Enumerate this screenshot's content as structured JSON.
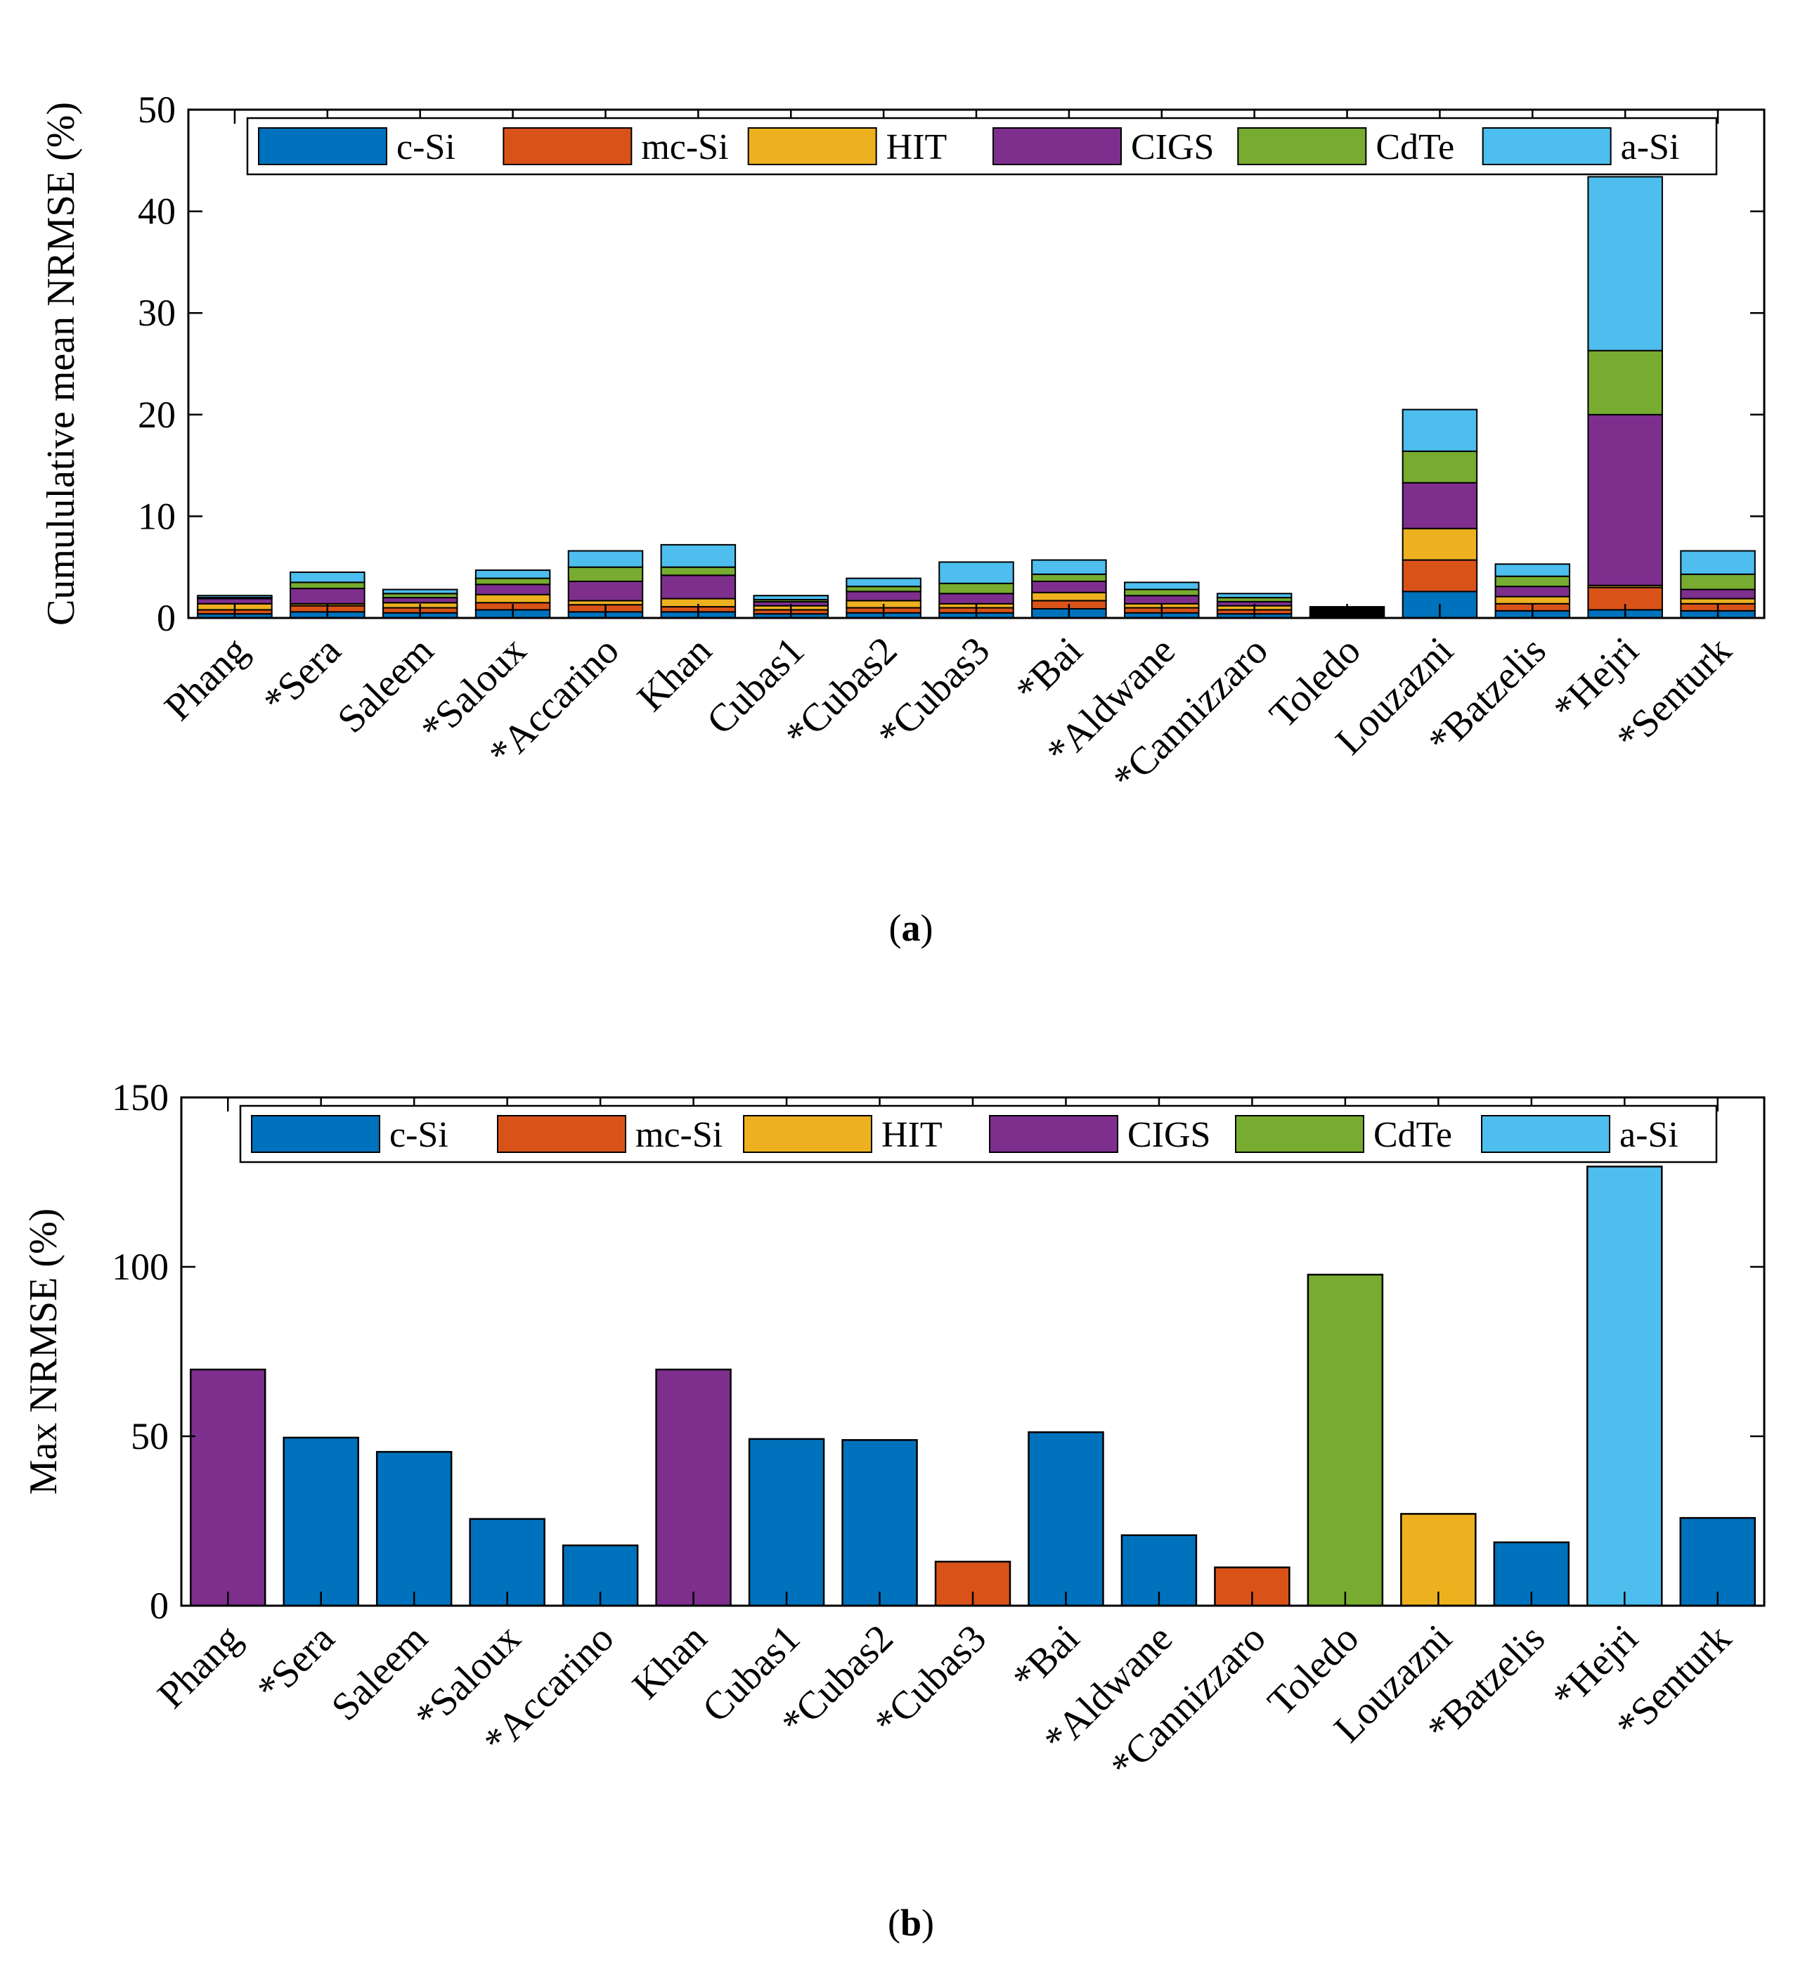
{
  "colors": {
    "c-Si": "#0072BD",
    "mc-Si": "#D95319",
    "HIT": "#EDB120",
    "CIGS": "#7E2F8E",
    "CdTe": "#77AC30",
    "a-Si": "#4DBEEE",
    "Toledo": "#000000"
  },
  "chart_data": [
    {
      "type": "bar",
      "stacked": true,
      "caption_letter": "a",
      "title": "",
      "xlabel": "",
      "ylabel": "Cumululative mean NRMSE (%)",
      "ylim": [
        0,
        50
      ],
      "yticks": [
        0,
        10,
        20,
        30,
        40,
        50
      ],
      "legend": [
        "c-Si",
        "mc-Si",
        "HIT",
        "CIGS",
        "CdTe",
        "a-Si"
      ],
      "legend_position": "top",
      "categories": [
        "Phang",
        "*Sera",
        "Saleem",
        "*Saloux",
        "*Accarino",
        "Khan",
        "Cubas1",
        "*Cubas2",
        "*Cubas3",
        "*Bai",
        "*Aldwane",
        "*Cannizzaro",
        "Toledo",
        "Louzazni",
        "*Batzelis",
        "*Hejri",
        "*Senturk"
      ],
      "series": [
        {
          "name": "c-Si",
          "values": [
            0.4,
            0.6,
            0.5,
            0.8,
            0.6,
            0.6,
            0.4,
            0.5,
            0.5,
            0.9,
            0.5,
            0.4,
            0.3,
            2.6,
            0.7,
            0.8,
            0.7
          ]
        },
        {
          "name": "mc-Si",
          "values": [
            0.4,
            0.6,
            0.5,
            0.7,
            0.7,
            0.5,
            0.4,
            0.5,
            0.5,
            0.8,
            0.5,
            0.4,
            0.2,
            3.1,
            0.7,
            2.2,
            0.7
          ]
        },
        {
          "name": "HIT",
          "values": [
            0.6,
            0.2,
            0.5,
            0.8,
            0.4,
            0.8,
            0.4,
            0.7,
            0.4,
            0.8,
            0.4,
            0.4,
            0.2,
            3.1,
            0.7,
            0.2,
            0.5
          ]
        },
        {
          "name": "CIGS",
          "values": [
            0.5,
            1.5,
            0.5,
            1.0,
            1.9,
            2.3,
            0.4,
            0.9,
            1.0,
            1.1,
            0.8,
            0.4,
            0.2,
            4.5,
            1.0,
            16.8,
            0.9
          ]
        },
        {
          "name": "CdTe",
          "values": [
            0.1,
            0.6,
            0.4,
            0.6,
            1.4,
            0.8,
            0.2,
            0.5,
            1.0,
            0.7,
            0.6,
            0.4,
            0.1,
            3.1,
            1.0,
            6.3,
            1.5
          ]
        },
        {
          "name": "a-Si",
          "values": [
            0.2,
            1.0,
            0.4,
            0.8,
            1.6,
            2.2,
            0.4,
            0.8,
            2.1,
            1.4,
            0.7,
            0.4,
            0.1,
            4.1,
            1.2,
            17.1,
            2.3
          ]
        }
      ]
    },
    {
      "type": "bar",
      "caption_letter": "b",
      "title": "",
      "xlabel": "",
      "ylabel": "Max NRMSE (%)",
      "ylim": [
        0,
        150
      ],
      "yticks": [
        0,
        50,
        100,
        150
      ],
      "legend": [
        "c-Si",
        "mc-Si",
        "HIT",
        "CIGS",
        "CdTe",
        "a-Si"
      ],
      "legend_position": "top",
      "categories": [
        "Phang",
        "*Sera",
        "Saleem",
        "*Saloux",
        "*Accarino",
        "Khan",
        "Cubas1",
        "*Cubas2",
        "*Cubas3",
        "*Bai",
        "*Aldwane",
        "*Cannizzaro",
        "Toledo",
        "Louzazni",
        "*Batzelis",
        "*Hejri",
        "*Senturk"
      ],
      "values": [
        69.7,
        49.6,
        45.4,
        25.6,
        17.8,
        69.7,
        49.2,
        48.9,
        13.0,
        51.2,
        20.8,
        11.3,
        97.7,
        27.1,
        18.7,
        129.6,
        25.9
      ],
      "bar_types": [
        "CIGS",
        "c-Si",
        "c-Si",
        "c-Si",
        "c-Si",
        "CIGS",
        "c-Si",
        "c-Si",
        "mc-Si",
        "c-Si",
        "c-Si",
        "mc-Si",
        "CdTe",
        "HIT",
        "c-Si",
        "a-Si",
        "c-Si"
      ]
    }
  ]
}
